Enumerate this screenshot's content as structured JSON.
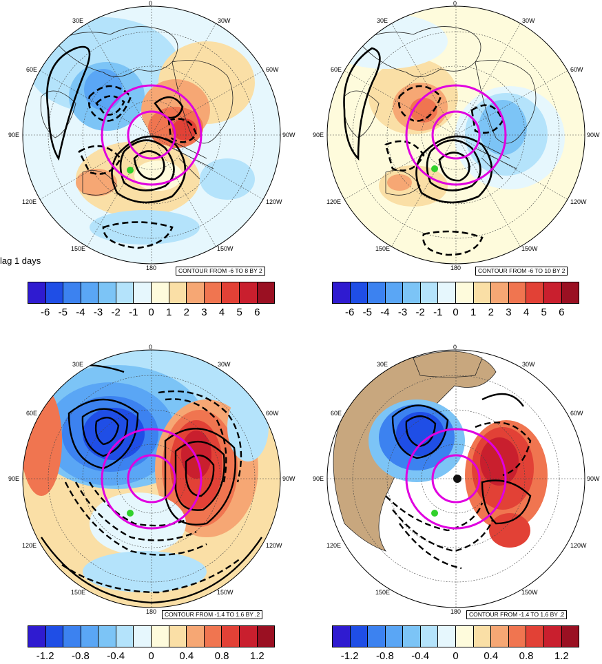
{
  "colors": {
    "scale": [
      "#2f1bd0",
      "#1f4ee6",
      "#3c82f0",
      "#5aa6f5",
      "#7cc4f6",
      "#b4e3fb",
      "#e6f7fd",
      "#fefbdc",
      "#fadfa6",
      "#f6a774",
      "#f07550",
      "#e24136",
      "#c91f2e",
      "#9a1022"
    ],
    "land": "#c8a77e",
    "ring": "#e000e0",
    "marker": "#31d12b"
  },
  "lag_label": "lag 1 days",
  "panels": [
    {
      "id": "top-left",
      "lon_labels": {
        "0": "0",
        "30e": "30E",
        "60e": "60E",
        "90e": "90E",
        "120e": "120E",
        "150e": "150E",
        "180": "180",
        "150w": "150W",
        "120w": "120W",
        "90w": "90W",
        "60w": "60W",
        "30w": "30W"
      },
      "contour_label": "CONTOUR FROM -6 TO 8 BY 2",
      "ticks": [
        "-6",
        "-5",
        "-4",
        "-3",
        "-2",
        "-1",
        "0",
        "1",
        "2",
        "3",
        "4",
        "5",
        "6"
      ]
    },
    {
      "id": "top-right",
      "lon_labels": {
        "0": "0",
        "30e": "30E",
        "60e": "60E",
        "90e": "90E",
        "120e": "120E",
        "150e": "150E",
        "180": "180",
        "150w": "150W",
        "120w": "120W",
        "90w": "90W",
        "60w": "60W",
        "30w": "30W"
      },
      "contour_label": "CONTOUR FROM -6 TO 10 BY 2",
      "ticks": [
        "-6",
        "-5",
        "-4",
        "-3",
        "-2",
        "-1",
        "0",
        "1",
        "2",
        "3",
        "4",
        "5",
        "6"
      ]
    },
    {
      "id": "bottom-left",
      "lon_labels": {
        "0": "0",
        "30e": "30E",
        "60e": "60E",
        "90e": "90E",
        "120e": "120E",
        "150e": "150E",
        "180": "180",
        "150w": "150W",
        "120w": "120W",
        "90w": "90W",
        "60w": "60W",
        "30w": "30W"
      },
      "contour_label": "CONTOUR FROM -1.4 TO 1.6 BY .2",
      "ticks": [
        "-1.2",
        "-0.8",
        "-0.4",
        "0",
        "0.4",
        "0.8",
        "1.2"
      ]
    },
    {
      "id": "bottom-right",
      "lon_labels": {
        "0": "0",
        "30e": "30E",
        "60e": "60E",
        "90e": "90E",
        "120e": "120E",
        "150e": "150E",
        "180": "180",
        "150w": "150W",
        "120w": "120W",
        "90w": "90W",
        "60w": "60W",
        "30w": "30W"
      },
      "contour_label": "CONTOUR FROM -1.4 TO 1.6 BY .2",
      "ticks": [
        "-1.2",
        "-0.8",
        "-0.4",
        "0",
        "0.4",
        "0.8",
        "1.2"
      ]
    }
  ]
}
